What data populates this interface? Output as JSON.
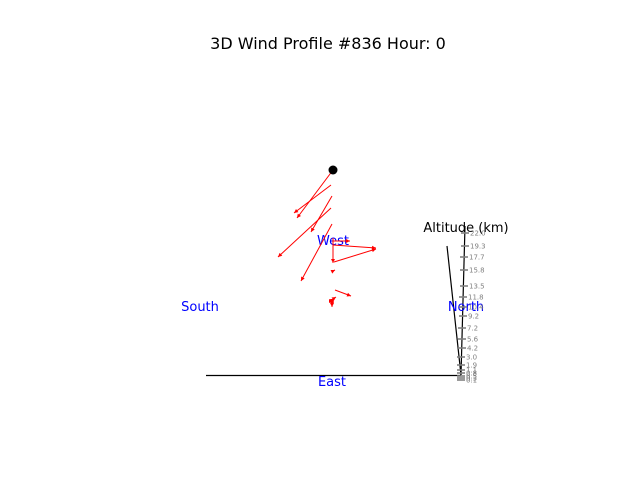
{
  "chart_data": {
    "type": "wind-profile-3d",
    "title": "3D Wind Profile #836 Hour: 0",
    "compass": {
      "west": "West",
      "south": "South",
      "north": "North",
      "east": "East"
    },
    "altitude_axis": {
      "label": "Altitude (km)",
      "unit": "km",
      "tick_labels": [
        "22.0",
        "19.3",
        "17.7",
        "15.8",
        "13.5",
        "11.8",
        "10.4",
        "9.2",
        "7.2",
        "5.6",
        "4.2",
        "3.0",
        "1.9",
        "1.1",
        "0.8",
        "0.5",
        "0.3",
        "0.1"
      ]
    },
    "colors": {
      "wind_vectors": "#ff0000",
      "compass_labels": "#0000ff",
      "axis": "#000000",
      "ticks": "#808080",
      "top_marker": "#000000"
    },
    "series": [
      {
        "values": [
          {
            "dx": -36,
            "dy": 48
          },
          {
            "dx": -37,
            "dy": 28
          },
          {
            "dx": -21,
            "dy": 36
          },
          {
            "dx": -53,
            "dy": 49
          },
          {
            "dx": -31,
            "dy": 57
          },
          {
            "dx": 0,
            "dy": 25
          },
          {
            "dx": 43,
            "dy": 3
          },
          {
            "dx": 42,
            "dy": -13
          },
          {
            "dx": 17,
            "dy": 0
          },
          {
            "dx": 2,
            "dy": -1
          },
          {
            "dx": 16,
            "dy": 6
          },
          {
            "dx": 3,
            "dy": -2
          },
          {
            "dx": 1,
            "dy": 0
          },
          {
            "dx": 0,
            "dy": 1
          },
          {
            "dx": 0,
            "dy": 1
          },
          {
            "dx": 0,
            "dy": 1
          },
          {
            "dx": 0,
            "dy": 1
          },
          {
            "dx": 0,
            "dy": 1
          }
        ]
      }
    ]
  }
}
